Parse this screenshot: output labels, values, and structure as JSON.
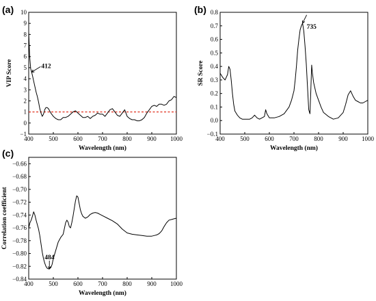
{
  "chart_data": [
    {
      "panel": "(a)",
      "type": "line",
      "title": "",
      "xlabel": "Wavelength (nm)",
      "ylabel": "VIP Score",
      "xlim": [
        400,
        1000
      ],
      "ylim": [
        -1,
        10
      ],
      "xticks": [
        400,
        500,
        600,
        700,
        800,
        900,
        1000
      ],
      "yticks": [
        -1,
        0,
        1,
        2,
        3,
        4,
        5,
        6,
        7,
        8,
        9,
        10
      ],
      "threshold": 1,
      "annotations": [
        {
          "text": "412",
          "x": 412,
          "y": 4.6
        }
      ],
      "series": [
        {
          "x": [
            400,
            404,
            408,
            412,
            416,
            420,
            425,
            430,
            435,
            440,
            445,
            450,
            455,
            460,
            465,
            470,
            475,
            480,
            490,
            500,
            510,
            520,
            530,
            540,
            550,
            560,
            570,
            580,
            590,
            600,
            610,
            620,
            630,
            640,
            650,
            660,
            670,
            680,
            690,
            700,
            710,
            720,
            730,
            740,
            750,
            760,
            770,
            780,
            790,
            800,
            810,
            820,
            830,
            840,
            850,
            860,
            870,
            880,
            890,
            900,
            910,
            920,
            930,
            940,
            950,
            960,
            970,
            980,
            990,
            1000
          ],
          "y": [
            8.2,
            6.0,
            4.9,
            4.6,
            4.2,
            3.8,
            3.3,
            2.8,
            2.4,
            1.9,
            1.3,
            0.9,
            0.6,
            0.8,
            1.2,
            1.4,
            1.4,
            1.3,
            0.9,
            0.6,
            0.4,
            0.3,
            0.3,
            0.5,
            0.5,
            0.6,
            0.8,
            1.0,
            1.1,
            0.9,
            0.7,
            0.5,
            0.5,
            0.6,
            0.4,
            0.6,
            0.7,
            0.9,
            0.8,
            0.8,
            0.6,
            0.9,
            1.2,
            1.3,
            1.0,
            0.7,
            0.6,
            0.9,
            1.2,
            0.6,
            0.4,
            0.3,
            0.3,
            0.2,
            0.2,
            0.3,
            0.5,
            0.9,
            1.2,
            1.5,
            1.6,
            1.5,
            1.7,
            1.7,
            1.6,
            1.7,
            2.0,
            2.1,
            2.4,
            2.3
          ]
        }
      ]
    },
    {
      "panel": "(b)",
      "type": "line",
      "title": "",
      "xlabel": "Wavelength (nm)",
      "ylabel": "SR Score",
      "xlim": [
        400,
        1000
      ],
      "ylim": [
        -0.1,
        0.8
      ],
      "xticks": [
        400,
        500,
        600,
        700,
        800,
        900,
        1000
      ],
      "yticks": [
        -0.1,
        0.0,
        0.1,
        0.2,
        0.3,
        0.4,
        0.5,
        0.6,
        0.7,
        0.8
      ],
      "tick_labels": [
        "−0.1",
        "0.0",
        "0.1",
        "0.2",
        "0.3",
        "0.4",
        "0.5",
        "0.6",
        "0.7",
        "0.8"
      ],
      "annotations": [
        {
          "text": "735",
          "x": 735,
          "y": 0.72
        }
      ],
      "series": [
        {
          "x": [
            400,
            410,
            420,
            430,
            435,
            440,
            445,
            450,
            455,
            460,
            470,
            480,
            490,
            500,
            510,
            520,
            530,
            540,
            545,
            550,
            560,
            570,
            580,
            585,
            590,
            600,
            620,
            640,
            660,
            680,
            690,
            700,
            705,
            710,
            715,
            720,
            725,
            730,
            735,
            740,
            745,
            750,
            755,
            760,
            765,
            768,
            772,
            775,
            780,
            790,
            800,
            810,
            820,
            840,
            860,
            880,
            900,
            910,
            920,
            930,
            940,
            950,
            960,
            970,
            980,
            990,
            1000
          ],
          "y": [
            0.35,
            0.32,
            0.3,
            0.34,
            0.4,
            0.38,
            0.3,
            0.2,
            0.12,
            0.07,
            0.04,
            0.02,
            0.01,
            0.01,
            0.01,
            0.01,
            0.02,
            0.04,
            0.03,
            0.02,
            0.01,
            0.02,
            0.03,
            0.08,
            0.05,
            0.02,
            0.02,
            0.03,
            0.05,
            0.1,
            0.15,
            0.22,
            0.3,
            0.4,
            0.52,
            0.6,
            0.67,
            0.7,
            0.72,
            0.66,
            0.55,
            0.42,
            0.25,
            0.08,
            0.05,
            0.2,
            0.41,
            0.35,
            0.28,
            0.2,
            0.15,
            0.1,
            0.06,
            0.03,
            0.01,
            0.02,
            0.06,
            0.12,
            0.19,
            0.22,
            0.18,
            0.15,
            0.14,
            0.13,
            0.13,
            0.14,
            0.15
          ]
        }
      ]
    },
    {
      "panel": "(c)",
      "type": "line",
      "title": "",
      "xlabel": "Wavelength (nm)",
      "ylabel": "Correlation coefficient",
      "xlim": [
        400,
        1000
      ],
      "ylim": [
        -0.84,
        -0.65
      ],
      "xticks": [
        400,
        500,
        600,
        700,
        800,
        900,
        1000
      ],
      "yticks": [
        -0.84,
        -0.82,
        -0.8,
        -0.78,
        -0.76,
        -0.74,
        -0.72,
        -0.7,
        -0.68,
        -0.66
      ],
      "tick_labels": [
        "−0.84",
        "−0.82",
        "−0.80",
        "−0.78",
        "−0.76",
        "−0.74",
        "−0.72",
        "−0.70",
        "−0.68",
        "−0.66"
      ],
      "annotations": [
        {
          "text": "484",
          "x": 484,
          "y": -0.824
        }
      ],
      "series": [
        {
          "x": [
            400,
            405,
            410,
            415,
            420,
            425,
            430,
            435,
            440,
            445,
            450,
            455,
            460,
            465,
            470,
            475,
            480,
            484,
            490,
            495,
            500,
            510,
            520,
            530,
            540,
            550,
            555,
            560,
            565,
            570,
            575,
            580,
            585,
            590,
            595,
            600,
            605,
            610,
            615,
            620,
            630,
            640,
            650,
            660,
            670,
            680,
            690,
            700,
            720,
            740,
            760,
            780,
            800,
            820,
            840,
            860,
            880,
            900,
            910,
            920,
            930,
            940,
            950,
            960,
            970,
            980,
            990,
            1000
          ],
          "y": [
            -0.76,
            -0.752,
            -0.748,
            -0.742,
            -0.735,
            -0.74,
            -0.748,
            -0.755,
            -0.762,
            -0.772,
            -0.785,
            -0.798,
            -0.808,
            -0.815,
            -0.82,
            -0.823,
            -0.824,
            -0.824,
            -0.822,
            -0.817,
            -0.808,
            -0.795,
            -0.782,
            -0.775,
            -0.77,
            -0.752,
            -0.748,
            -0.751,
            -0.758,
            -0.76,
            -0.752,
            -0.742,
            -0.73,
            -0.718,
            -0.71,
            -0.712,
            -0.722,
            -0.732,
            -0.738,
            -0.742,
            -0.745,
            -0.743,
            -0.739,
            -0.737,
            -0.736,
            -0.737,
            -0.739,
            -0.741,
            -0.745,
            -0.749,
            -0.754,
            -0.762,
            -0.768,
            -0.77,
            -0.771,
            -0.772,
            -0.773,
            -0.773,
            -0.772,
            -0.771,
            -0.769,
            -0.765,
            -0.758,
            -0.752,
            -0.748,
            -0.747,
            -0.746,
            -0.745
          ]
        }
      ]
    }
  ]
}
